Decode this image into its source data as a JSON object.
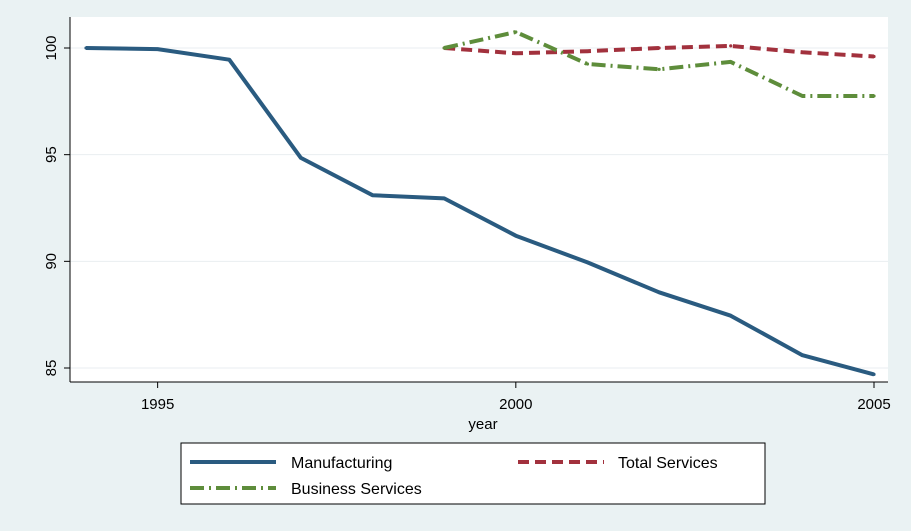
{
  "chart_data": {
    "type": "line",
    "xlabel": "year",
    "ylabel": "",
    "xlim": [
      1994,
      2005
    ],
    "ylim": [
      84.3,
      101.3
    ],
    "xticks": [
      1995,
      2000,
      2005
    ],
    "yticks": [
      85,
      90,
      95,
      100
    ],
    "grid": true,
    "legend_position": "bottom",
    "series": [
      {
        "name": "Manufacturing",
        "color": "#2a5b80",
        "style": "solid",
        "x": [
          1994,
          1995,
          1996,
          1997,
          1998,
          1999,
          2000,
          2001,
          2002,
          2003,
          2004,
          2005
        ],
        "y": [
          100,
          99.95,
          99.45,
          94.85,
          93.1,
          92.95,
          91.2,
          89.95,
          88.55,
          87.45,
          85.6,
          84.7
        ]
      },
      {
        "name": "Total Services",
        "color": "#a2313d",
        "style": "dash",
        "x": [
          1999,
          2000,
          2001,
          2002,
          2003,
          2004,
          2005
        ],
        "y": [
          100,
          99.75,
          99.85,
          100,
          100.1,
          99.8,
          99.6
        ]
      },
      {
        "name": "Business Services",
        "color": "#5e8d3b",
        "style": "dashdot",
        "x": [
          1999,
          2000,
          2001,
          2002,
          2003,
          2004,
          2005
        ],
        "y": [
          100,
          100.75,
          99.25,
          99,
          99.35,
          97.75,
          97.75
        ]
      }
    ]
  }
}
